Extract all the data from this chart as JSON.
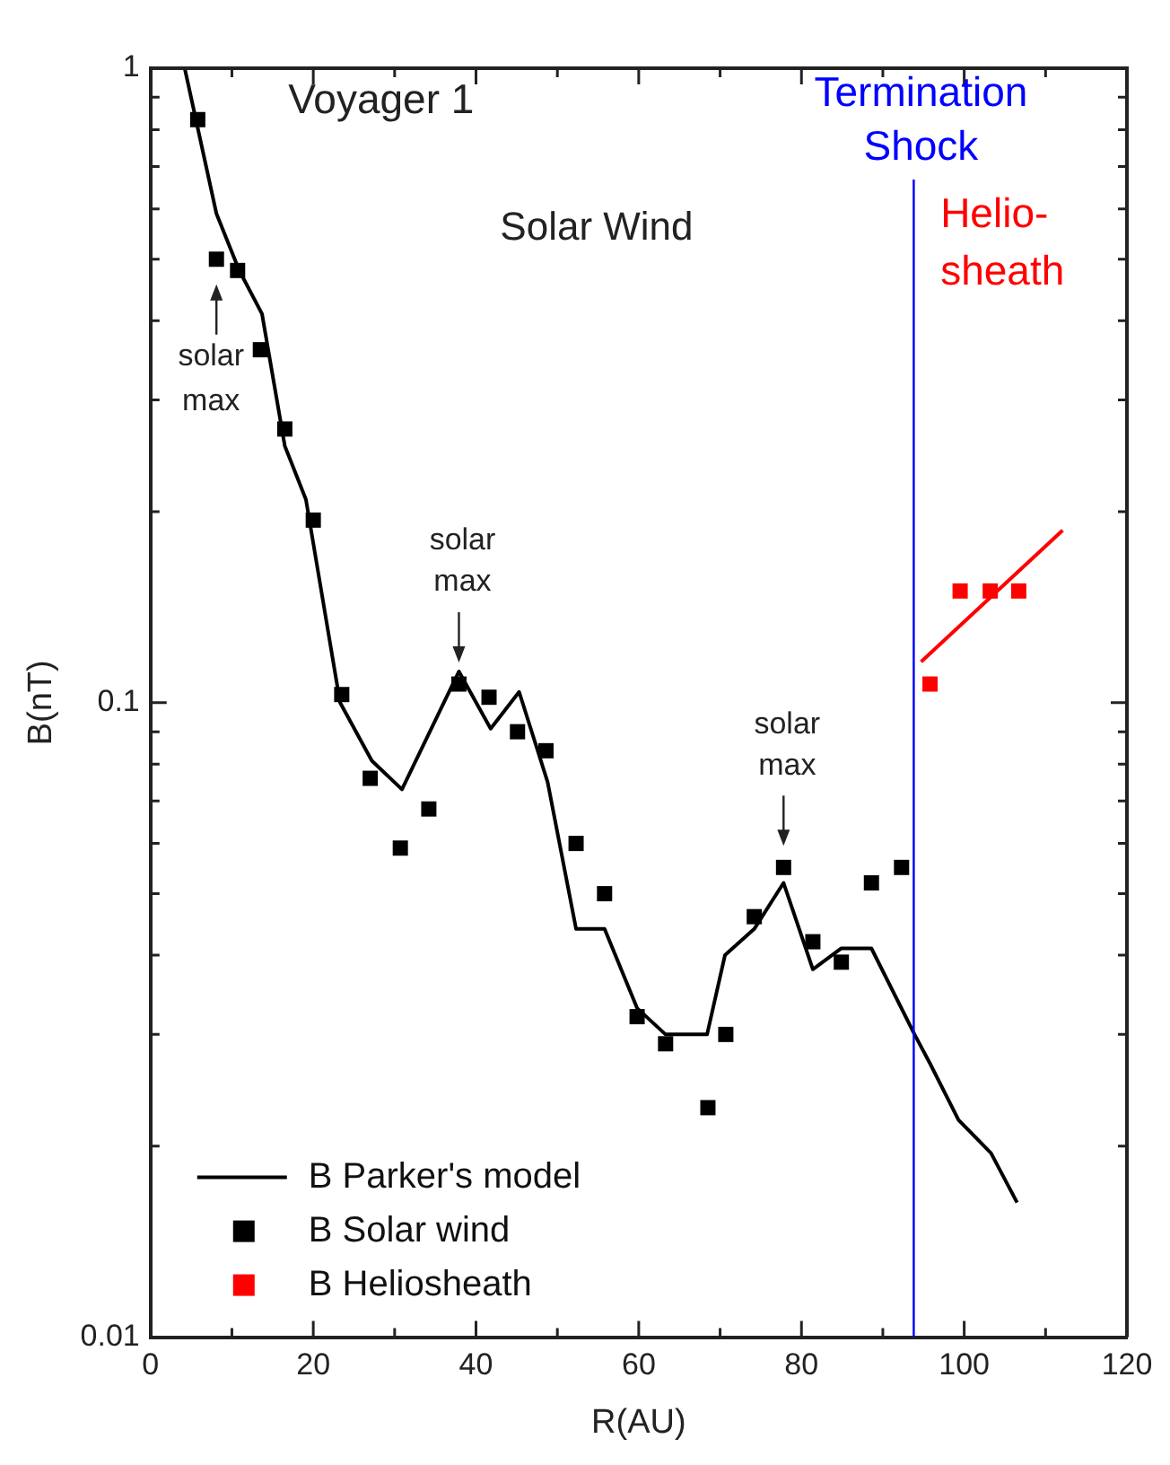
{
  "chart_data": {
    "type": "scatter",
    "xlabel": "R(AU)",
    "ylabel": "B(nT)",
    "xlim": [
      0,
      120
    ],
    "xticks": [
      0,
      {
        "value": 10,
        "label": null
      },
      20,
      {
        "value": 30,
        "label": null
      },
      40,
      {
        "value": 50,
        "label": null
      },
      60,
      {
        "value": 70,
        "label": null
      },
      80,
      {
        "value": 90,
        "label": null
      },
      100,
      {
        "value": 110,
        "label": null
      },
      120
    ],
    "ylim": [
      0.01,
      1
    ],
    "log": "y",
    "yticks": [
      0.01,
      {
        "value": 0.02,
        "label": null
      },
      {
        "value": 0.03,
        "label": null
      },
      {
        "value": 0.04,
        "label": null
      },
      {
        "value": 0.05,
        "label": null
      },
      {
        "value": 0.06,
        "label": null
      },
      {
        "value": 0.07,
        "label": null
      },
      {
        "value": 0.08,
        "label": null
      },
      {
        "value": 0.09,
        "label": null
      },
      0.1,
      {
        "value": 0.2,
        "label": null
      },
      {
        "value": 0.3,
        "label": null
      },
      {
        "value": 0.4,
        "label": null
      },
      {
        "value": 0.5,
        "label": null
      },
      {
        "value": 0.6,
        "label": null
      },
      {
        "value": 0.7,
        "label": null
      },
      {
        "value": 0.8,
        "label": null
      },
      {
        "value": 0.9,
        "label": null
      },
      1
    ],
    "grid": false,
    "legend": "bottom left",
    "series": [
      {
        "name": "B Parker's model",
        "type": "line",
        "marker": "none",
        "color": "#000000",
        "x": [
          4.2,
          8.1,
          10.9,
          13.7,
          16.5,
          19.1,
          23.3,
          27.2,
          30.9,
          37.9,
          41.8,
          45.3,
          48.8,
          52.3,
          55.8,
          59.8,
          63.3,
          68.4,
          70.6,
          74.2,
          77.8,
          81.4,
          84.9,
          88.6,
          93.9,
          95.8,
          99.3,
          103.3,
          106.5
        ],
        "values": [
          1,
          0.59,
          0.48,
          0.41,
          0.254,
          0.209,
          0.1,
          0.081,
          0.073,
          0.112,
          0.091,
          0.104,
          0.075,
          0.044,
          0.044,
          0.033,
          0.03,
          0.03,
          0.04,
          0.044,
          0.052,
          0.038,
          0.041,
          0.041,
          0.03,
          0.027,
          0.022,
          0.0195,
          0.0163
        ]
      },
      {
        "name": "B Solar wind",
        "type": "scatter",
        "marker": "square",
        "color": "#000000",
        "x": [
          5.8,
          8.1,
          10.7,
          13.5,
          16.5,
          20,
          23.5,
          27,
          30.7,
          34.2,
          37.9,
          41.6,
          45.1,
          48.6,
          52.3,
          55.8,
          59.8,
          63.3,
          68.5,
          70.7,
          74.2,
          77.8,
          81.4,
          84.9,
          88.6,
          92.3
        ],
        "values": [
          0.83,
          0.5,
          0.48,
          0.36,
          0.27,
          0.194,
          0.103,
          0.076,
          0.059,
          0.068,
          0.107,
          0.102,
          0.09,
          0.084,
          0.06,
          0.05,
          0.032,
          0.029,
          0.023,
          0.03,
          0.046,
          0.055,
          0.042,
          0.039,
          0.052,
          0.055
        ]
      },
      {
        "name": "B Heliosheath",
        "type": "scatter",
        "marker": "square",
        "color": "#ff0000",
        "x": [
          95.8,
          99.5,
          103.2,
          106.7
        ],
        "values": [
          0.107,
          0.15,
          0.15,
          0.15
        ]
      },
      {
        "type": "line",
        "marker": "none",
        "color": "#ff0000",
        "x": [
          94.7,
          112.1
        ],
        "values": [
          0.116,
          0.187
        ]
      }
    ],
    "ref_lines": [
      {
        "axis": "x",
        "value": 93.8,
        "label": "Termination Shock",
        "color": "#0000ff"
      }
    ],
    "annotations": [
      "Voyager 1",
      "Solar Wind",
      "Helio-\nsheath",
      {
        "text": "solar max",
        "x": 8.1,
        "y": 0.5
      },
      {
        "text": "solar max",
        "x": 37.9,
        "y": 0.107
      },
      {
        "text": "solar max",
        "x": 77.8,
        "y": 0.055
      }
    ]
  }
}
